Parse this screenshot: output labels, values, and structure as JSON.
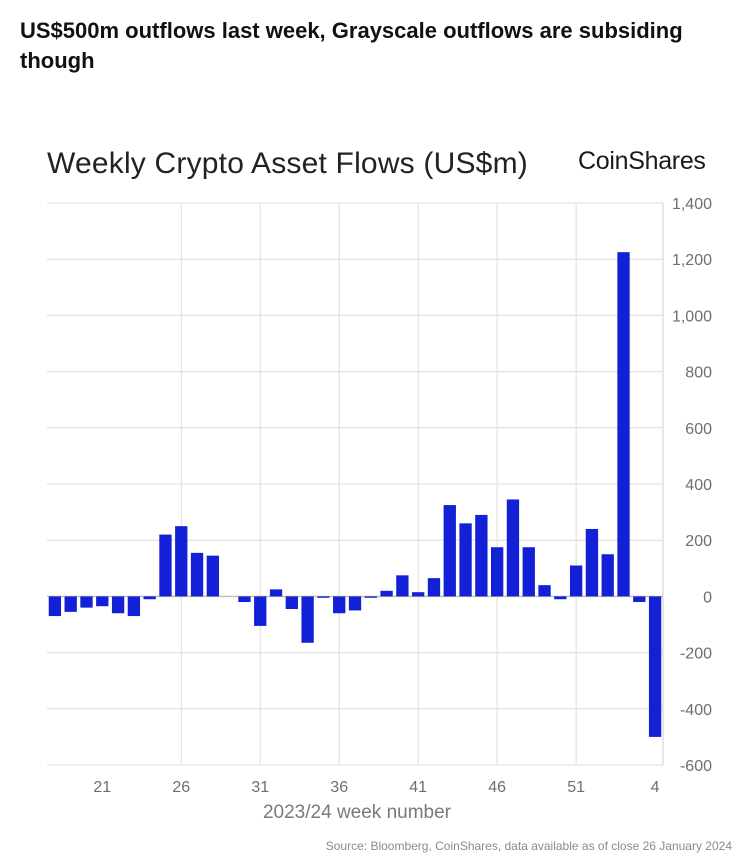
{
  "headline": "US$500m outflows last week, Grayscale outflows are subsiding though",
  "brand": {
    "logo_text": "CoinShares",
    "bar_color": "#1321d6"
  },
  "source": "Source: Bloomberg, CoinShares, data available as of close 26 January 2024",
  "chart_data": {
    "type": "bar",
    "title": "Weekly Crypto Asset Flows (US$m)",
    "xlabel": "2023/24 week number",
    "ylabel": "",
    "ylim": [
      -600,
      1400
    ],
    "yticks": [
      "1,400",
      "1,200",
      "1,000",
      "800",
      "600",
      "400",
      "200",
      "0",
      "-200",
      "-400",
      "-600"
    ],
    "ytick_values": [
      1400,
      1200,
      1000,
      800,
      600,
      400,
      200,
      0,
      -200,
      -400,
      -600
    ],
    "xtick_labels": [
      "21",
      "26",
      "31",
      "36",
      "41",
      "46",
      "51",
      "4"
    ],
    "xtick_indices": [
      3,
      8,
      13,
      18,
      23,
      28,
      33,
      38
    ],
    "grid": true,
    "categories": [
      "18",
      "19",
      "20",
      "21",
      "22",
      "23",
      "24",
      "25",
      "26",
      "27",
      "28",
      "29",
      "30",
      "31",
      "32",
      "33",
      "34",
      "35",
      "36",
      "37",
      "38",
      "39",
      "40",
      "41",
      "42",
      "43",
      "44",
      "45",
      "46",
      "47",
      "48",
      "49",
      "50",
      "51",
      "52",
      "1",
      "2",
      "3",
      "4"
    ],
    "values": [
      -70,
      -55,
      -40,
      -35,
      -60,
      -70,
      -10,
      220,
      250,
      155,
      145,
      0,
      -20,
      -105,
      25,
      -45,
      -165,
      -5,
      -60,
      -50,
      -5,
      20,
      75,
      15,
      65,
      325,
      260,
      290,
      175,
      345,
      175,
      40,
      -10,
      110,
      240,
      150,
      1225,
      -20,
      -500
    ]
  }
}
